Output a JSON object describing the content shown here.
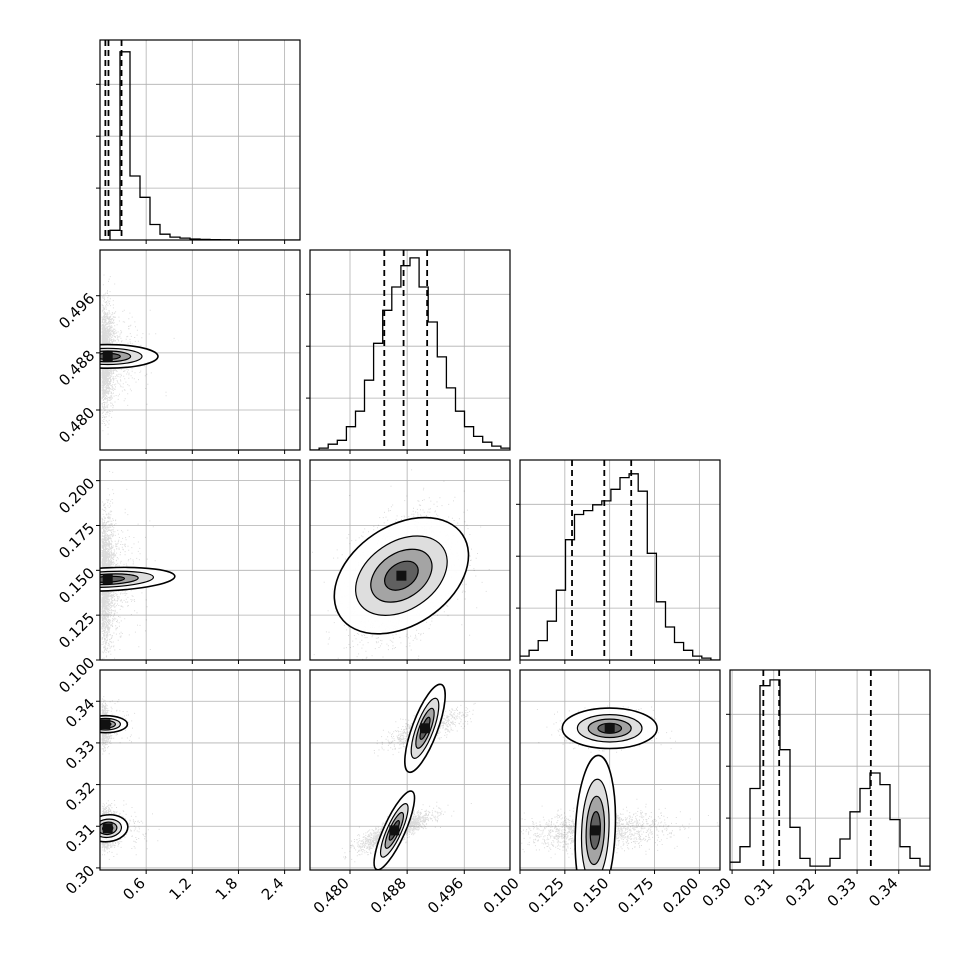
{
  "chart_data": {
    "type": "corner",
    "n_params": 4,
    "grid": true,
    "params": [
      {
        "range": [
          0.0,
          2.6
        ],
        "ticks": [
          0.6,
          1.2,
          1.8,
          2.4
        ],
        "tick_labels": [
          "0.6",
          "1.2",
          "1.8",
          "2.4"
        ],
        "quantiles": [
          0.07,
          0.11,
          0.28
        ]
      },
      {
        "range": [
          0.4744,
          0.5024
        ],
        "ticks": [
          0.48,
          0.488,
          0.496
        ],
        "tick_labels": [
          "0.480",
          "0.488",
          "0.496"
        ],
        "quantiles": [
          0.4848,
          0.4875,
          0.4908
        ]
      },
      {
        "range": [
          0.1,
          0.2115
        ],
        "ticks": [
          0.1,
          0.125,
          0.15,
          0.175,
          0.2
        ],
        "tick_labels": [
          "0.100",
          "0.125",
          "0.150",
          "0.175",
          "0.200"
        ],
        "quantiles": [
          0.129,
          0.147,
          0.162
        ]
      },
      {
        "range": [
          0.2995,
          0.3475
        ],
        "ticks": [
          0.3,
          0.31,
          0.32,
          0.33,
          0.34
        ],
        "tick_labels": [
          "0.30",
          "0.31",
          "0.32",
          "0.33",
          "0.34"
        ],
        "quantiles": [
          0.3075,
          0.3113,
          0.3333
        ]
      }
    ],
    "histograms": [
      {
        "param": 0,
        "counts": [
          0,
          0.05,
          0.97,
          0.33,
          0.22,
          0.08,
          0.03,
          0.015,
          0.01,
          0.005,
          0.003,
          0.002,
          0.001,
          0,
          0,
          0,
          0,
          0,
          0,
          0
        ]
      },
      {
        "param": 1,
        "counts": [
          0.0,
          0.01,
          0.03,
          0.05,
          0.12,
          0.2,
          0.36,
          0.55,
          0.72,
          0.84,
          0.95,
          0.99,
          0.84,
          0.66,
          0.48,
          0.32,
          0.2,
          0.12,
          0.07,
          0.04,
          0.02,
          0.01
        ]
      },
      {
        "param": 2,
        "counts": [
          0.02,
          0.05,
          0.1,
          0.2,
          0.36,
          0.62,
          0.75,
          0.77,
          0.8,
          0.82,
          0.88,
          0.94,
          0.96,
          0.87,
          0.55,
          0.3,
          0.17,
          0.09,
          0.05,
          0.02,
          0.01,
          0.0
        ]
      },
      {
        "param": 3,
        "counts": [
          0.04,
          0.12,
          0.42,
          0.95,
          0.98,
          0.62,
          0.22,
          0.06,
          0.02,
          0.02,
          0.06,
          0.16,
          0.3,
          0.42,
          0.5,
          0.44,
          0.26,
          0.12,
          0.06,
          0.02
        ]
      }
    ],
    "scatter_panels": [
      {
        "x": 0,
        "y": 1,
        "blobs": [
          {
            "cx": 0.1,
            "cy": 0.4875,
            "sx": 0.07,
            "sy": 0.0032,
            "rho": 0.0,
            "weight": 1.0
          }
        ],
        "tail": true
      },
      {
        "x": 0,
        "y": 2,
        "blobs": [
          {
            "cx": 0.1,
            "cy": 0.145,
            "sx": 0.07,
            "sy": 0.017,
            "rho": 0.25,
            "weight": 1.0
          }
        ],
        "tail": true
      },
      {
        "x": 0,
        "y": 3,
        "blobs": [
          {
            "cx": 0.1,
            "cy": 0.3095,
            "sx": 0.08,
            "sy": 0.0022,
            "rho": 0.1,
            "weight": 0.68
          },
          {
            "cx": 0.07,
            "cy": 0.3345,
            "sx": 0.05,
            "sy": 0.0024,
            "rho": 0.0,
            "weight": 0.32
          }
        ],
        "tail": true
      },
      {
        "x": 1,
        "y": 2,
        "blobs": [
          {
            "cx": 0.4872,
            "cy": 0.147,
            "sx": 0.0037,
            "sy": 0.017,
            "rho": 0.35,
            "weight": 1.0
          }
        ],
        "tail": false
      },
      {
        "x": 1,
        "y": 3,
        "blobs": [
          {
            "cx": 0.4862,
            "cy": 0.309,
            "sx": 0.0025,
            "sy": 0.0022,
            "rho": 0.82,
            "weight": 0.68
          },
          {
            "cx": 0.4905,
            "cy": 0.3335,
            "sx": 0.0028,
            "sy": 0.0022,
            "rho": 0.75,
            "weight": 0.32
          }
        ],
        "tail": false
      },
      {
        "x": 2,
        "y": 3,
        "blobs": [
          {
            "cx": 0.142,
            "cy": 0.309,
            "sx": 0.019,
            "sy": 0.0022,
            "rho": 0.15,
            "weight": 0.68
          },
          {
            "cx": 0.15,
            "cy": 0.3335,
            "sx": 0.012,
            "sy": 0.0022,
            "rho": 0.0,
            "weight": 0.32
          }
        ],
        "tail": false
      }
    ]
  }
}
